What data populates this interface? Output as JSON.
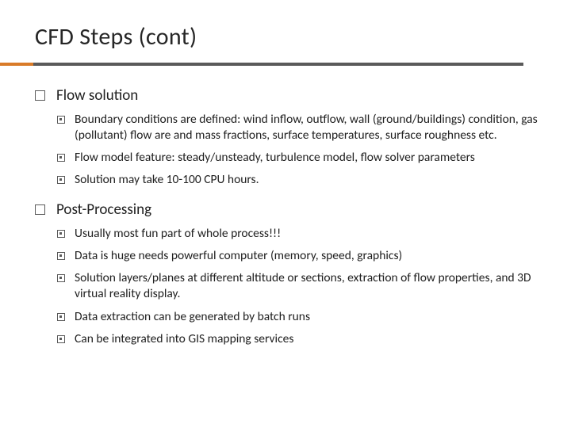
{
  "title": "CFD Steps (cont)",
  "colors": {
    "accent": "#d97b28",
    "underline": "#5a5a5a",
    "text": "#202020",
    "background": "#ffffff",
    "bullet_border": "#5a5a5a"
  },
  "typography": {
    "title_fontsize": 30,
    "level1_fontsize": 19,
    "level2_fontsize": 15.5,
    "font_family": "Gill Sans"
  },
  "sections": [
    {
      "heading": "Flow solution",
      "items": [
        "Boundary conditions are defined: wind inflow, outflow, wall (ground/buildings) condition, gas (pollutant) flow are and mass fractions,  surface temperatures, surface roughness etc.",
        "Flow model feature: steady/unsteady, turbulence model,  flow solver parameters",
        "Solution may take 10-100 CPU hours."
      ]
    },
    {
      "heading": "Post-Processing",
      "items": [
        "Usually most fun part of whole process!!!",
        "Data is huge  needs powerful  computer (memory, speed, graphics)",
        "Solution layers/planes at different altitude or sections, extraction of flow properties, and 3D virtual reality display.",
        "Data extraction can be generated by batch runs",
        "Can be integrated into GIS mapping services"
      ]
    }
  ]
}
